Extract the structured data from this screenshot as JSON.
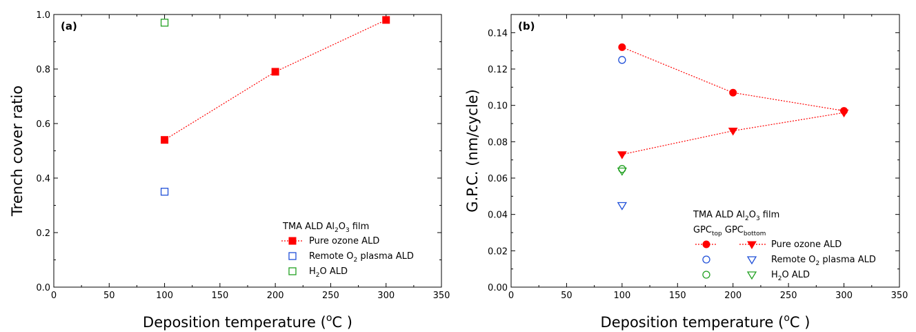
{
  "chart_data": [
    {
      "type": "scatter",
      "panel_label": "(a)",
      "xlabel": "Deposition temperature (",
      "xlabel_unit_sup": "o",
      "xlabel_unit": "C )",
      "ylabel": "Trench cover ratio",
      "xlim": [
        0,
        350
      ],
      "ylim": [
        0,
        1.0
      ],
      "xticks": [
        "0",
        "50",
        "100",
        "150",
        "200",
        "250",
        "300",
        "350"
      ],
      "yticks": [
        "0.0",
        "0.2",
        "0.4",
        "0.6",
        "0.8",
        "1.0"
      ],
      "legend_title_parts": [
        "TMA ALD Al",
        "2",
        "O",
        "3",
        " film"
      ],
      "series": [
        {
          "name": "Pure ozone ALD",
          "marker": "square-filled",
          "color": "#ff0000",
          "line": "dotted",
          "x": [
            100,
            200,
            300
          ],
          "y": [
            0.54,
            0.79,
            0.98
          ]
        },
        {
          "name_parts": [
            "Remote O",
            "2",
            " plasma ALD"
          ],
          "marker": "square-open",
          "color": "#1f4fd8",
          "x": [
            100
          ],
          "y": [
            0.35
          ]
        },
        {
          "name_parts": [
            "H",
            "2",
            "O ALD"
          ],
          "marker": "square-open",
          "color": "#20a020",
          "x": [
            100
          ],
          "y": [
            0.97
          ]
        }
      ]
    },
    {
      "type": "scatter",
      "panel_label": "(b)",
      "xlabel": "Deposition temperature (",
      "xlabel_unit_sup": "o",
      "xlabel_unit": "C )",
      "ylabel": "G.P.C. (nm/cycle)",
      "xlim": [
        0,
        350
      ],
      "ylim": [
        0,
        0.15
      ],
      "xticks": [
        "0",
        "50",
        "100",
        "150",
        "200",
        "250",
        "300",
        "350"
      ],
      "yticks": [
        "0.00",
        "0.02",
        "0.04",
        "0.06",
        "0.08",
        "0.10",
        "0.12",
        "0.14"
      ],
      "legend_title_parts": [
        "TMA ALD Al",
        "2",
        "O",
        "3",
        " film"
      ],
      "legend_header_parts": [
        "GPC",
        "top",
        " GPC",
        "bottom"
      ],
      "series": [
        {
          "name": "Pure ozone ALD GPC top",
          "marker": "circle-filled",
          "color": "#ff0000",
          "line": "dotted",
          "x": [
            100,
            200,
            300
          ],
          "y": [
            0.132,
            0.107,
            0.097
          ]
        },
        {
          "name": "Pure ozone ALD GPC bottom",
          "marker": "triangle-filled",
          "color": "#ff0000",
          "line": "dotted",
          "x": [
            100,
            200,
            300
          ],
          "y": [
            0.073,
            0.086,
            0.096
          ]
        },
        {
          "name": "Remote O2 plasma ALD GPC top",
          "marker": "circle-open",
          "color": "#1f4fd8",
          "x": [
            100
          ],
          "y": [
            0.125
          ]
        },
        {
          "name": "Remote O2 plasma ALD GPC bottom",
          "marker": "triangle-open",
          "color": "#1f4fd8",
          "x": [
            100
          ],
          "y": [
            0.045
          ]
        },
        {
          "name": "H2O ALD GPC top",
          "marker": "circle-open",
          "color": "#20a020",
          "x": [
            100
          ],
          "y": [
            0.065
          ]
        },
        {
          "name": "H2O ALD GPC bottom",
          "marker": "triangle-open",
          "color": "#20a020",
          "x": [
            100
          ],
          "y": [
            0.064
          ]
        }
      ],
      "legend_rows": [
        {
          "label": "Pure ozone ALD"
        },
        {
          "label_parts": [
            "Remote O",
            "2",
            " plasma ALD"
          ]
        },
        {
          "label_parts": [
            "H",
            "2",
            "O ALD"
          ]
        }
      ]
    }
  ]
}
